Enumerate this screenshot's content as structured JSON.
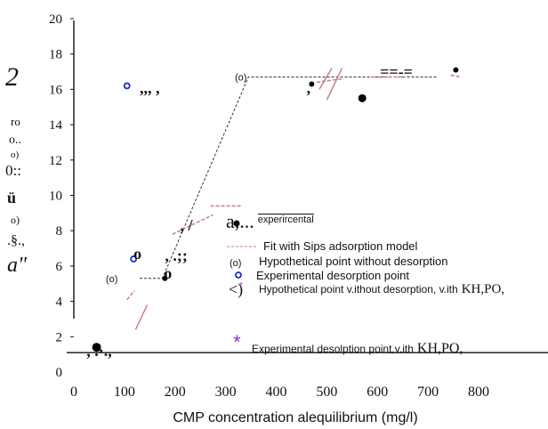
{
  "chart_data": {
    "type": "scatter",
    "title": "",
    "xlabel": "CMP concentration alequilibrium (mg/l)",
    "ylabel_fragments": [
      "2",
      "ro",
      "o..",
      "o)",
      "0::",
      "ü",
      "o)",
      ".§.,",
      "a\""
    ],
    "xlim": [
      0,
      800
    ],
    "ylim": [
      0,
      20
    ],
    "x_ticks": [
      "0",
      "100",
      "200",
      "300",
      "400",
      "500",
      "600",
      "700",
      "800"
    ],
    "y_ticks": [
      {
        "value": 20,
        "label": "20"
      },
      {
        "value": 18,
        "label": "18"
      },
      {
        "value": 16,
        "label": "16"
      },
      {
        "value": 14,
        "label": "14"
      },
      {
        "value": 12,
        "label": "12"
      },
      {
        "value": 10,
        "label": "10"
      },
      {
        "value": 8,
        "label": "8"
      },
      {
        "value": 6,
        "label": "6"
      },
      {
        "value": 4,
        "label": "4"
      },
      {
        "value": 2,
        "label": "2"
      },
      {
        "value": 0,
        "label": "0"
      }
    ],
    "series": [
      {
        "name": "a,...",
        "name_suffix": "experircental",
        "marker": "filled-circle",
        "color": "#000000",
        "points": [
          [
            45,
            1.4
          ],
          [
            180,
            5.3
          ],
          [
            470,
            16.3
          ],
          [
            570,
            15.5
          ],
          [
            755,
            17.1
          ]
        ]
      },
      {
        "name": "Fit with Sips adsorption model",
        "marker": "dashed-line",
        "color": "#c87a86",
        "segments": [
          [
            [
              105,
              4.1
            ],
            [
              120,
              4.6
            ]
          ],
          [
            [
              195,
              7.8
            ],
            [
              275,
              8.9
            ]
          ],
          [
            [
              270,
              9.4
            ],
            [
              330,
              9.4
            ]
          ],
          [
            [
              480,
              16.4
            ],
            [
              530,
              16.6
            ]
          ],
          [
            [
              590,
              16.7
            ],
            [
              655,
              16.7
            ]
          ],
          [
            [
              745,
              16.8
            ],
            [
              765,
              16.7
            ]
          ]
        ]
      },
      {
        "name": "Hypothetical point without desorption",
        "marker": "open-circle-parentheses",
        "color": "#000000",
        "points": [
          [
            75,
            5.3
          ],
          [
            330,
            16.7
          ]
        ]
      },
      {
        "name": "Experimental desorption point",
        "marker": "open-circle",
        "color": "#1a2bd6",
        "points": [
          [
            118,
            6.4
          ],
          [
            105,
            16.2
          ]
        ]
      },
      {
        "name": "Hypothetical point v.ithout desorption, v.ith",
        "name_suffix": "KH,PO,",
        "marker": "circle-parenthesis-purple",
        "color": "#7b39d8",
        "points": []
      },
      {
        "name": "Experimental desolption point,v.ith",
        "name_suffix": "KH,PO,",
        "marker": "asterisk",
        "color": "#7b39d8",
        "points": []
      }
    ],
    "fit_curve_dashed": [
      [
        130,
        5.3
      ],
      [
        175,
        5.3
      ],
      [
        345,
        16.7
      ],
      [
        720,
        16.7
      ]
    ],
    "axis_crossing_y": 1.1,
    "annotations": [
      {
        "text": ",,, ,",
        "x": 130,
        "y": 15.8
      },
      {
        "text": ", .·.,",
        "x": 25,
        "y": 0.9
      },
      {
        "text": ",",
        "x": 460,
        "y": 15.8
      },
      {
        "text": ", .;;",
        "x": 180,
        "y": 6.3
      },
      {
        "text": "o",
        "x": 118,
        "y": 6.4
      },
      {
        "text": ", /",
        "x": 210,
        "y": 8.0
      },
      {
        "text": "==-=",
        "x": 605,
        "y": 16.7
      },
      {
        "text": "o",
        "x": 178,
        "y": 5.3
      }
    ],
    "grid": false,
    "legend_position": "center-right"
  }
}
